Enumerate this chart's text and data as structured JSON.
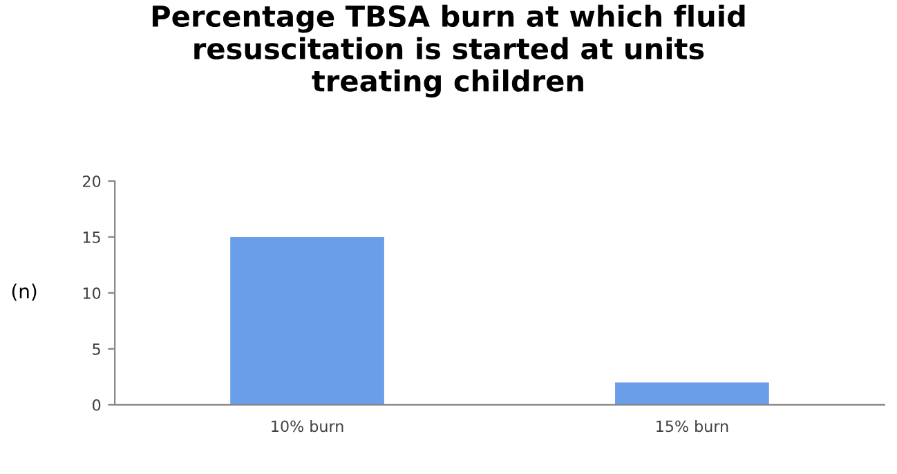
{
  "chart_data": {
    "type": "bar",
    "title": "Percentage TBSA burn at which fluid\nresuscitation is started at units\ntreating children",
    "ylabel": "(n)",
    "categories": [
      "10% burn",
      "15% burn"
    ],
    "values": [
      15,
      2
    ],
    "color": "#6a9ee8",
    "ylim": [
      0,
      20
    ],
    "yticks": [
      0,
      5,
      10,
      15,
      20
    ],
    "grid": false,
    "legend": false
  }
}
